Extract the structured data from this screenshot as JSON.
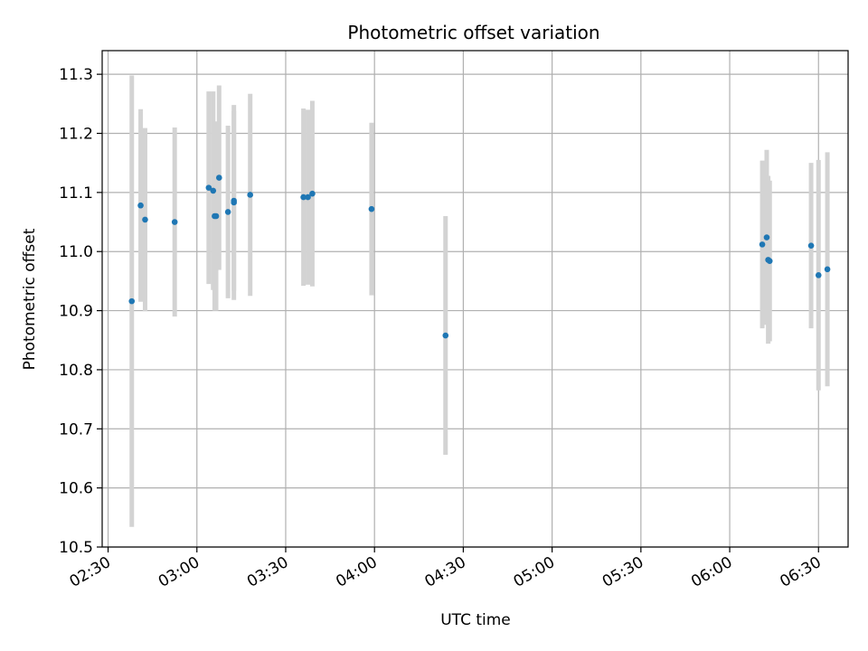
{
  "chart_data": {
    "type": "scatter",
    "title": "Photometric offset variation",
    "xlabel": "UTC time",
    "ylabel": "Photometric offset",
    "grid": true,
    "xlim": [
      "02:28",
      "06:40"
    ],
    "ylim": [
      10.5,
      11.34
    ],
    "x_ticks": [
      "02:30",
      "03:00",
      "03:30",
      "04:00",
      "04:30",
      "05:00",
      "05:30",
      "06:00",
      "06:30"
    ],
    "y_ticks": [
      10.5,
      10.6,
      10.7,
      10.8,
      10.9,
      11.0,
      11.1,
      11.2,
      11.3
    ],
    "colors": {
      "point": "#1f77b4",
      "errorbar": "#d3d3d3",
      "grid": "#b0b0b0"
    },
    "points": [
      {
        "x": "02:38:00",
        "y": 10.916,
        "err": 0.382
      },
      {
        "x": "02:41:00",
        "y": 11.078,
        "err": 0.163
      },
      {
        "x": "02:42:30",
        "y": 11.054,
        "err": 0.155
      },
      {
        "x": "02:52:30",
        "y": 11.05,
        "err": 0.16
      },
      {
        "x": "03:04:00",
        "y": 11.108,
        "err": 0.163
      },
      {
        "x": "03:05:30",
        "y": 11.103,
        "err": 0.168
      },
      {
        "x": "03:06:00",
        "y": 11.06,
        "err": 0.16
      },
      {
        "x": "03:06:30",
        "y": 11.06,
        "err": 0.16
      },
      {
        "x": "03:07:30",
        "y": 11.125,
        "err": 0.156
      },
      {
        "x": "03:10:30",
        "y": 11.067,
        "err": 0.146
      },
      {
        "x": "03:12:30",
        "y": 11.083,
        "err": 0.165
      },
      {
        "x": "03:12:30",
        "y": 11.086,
        "err": 0.152
      },
      {
        "x": "03:18:00",
        "y": 11.096,
        "err": 0.171
      },
      {
        "x": "03:36:00",
        "y": 11.092,
        "err": 0.15
      },
      {
        "x": "03:37:30",
        "y": 11.092,
        "err": 0.148
      },
      {
        "x": "03:39:00",
        "y": 11.098,
        "err": 0.157
      },
      {
        "x": "03:59:00",
        "y": 11.072,
        "err": 0.146
      },
      {
        "x": "04:24:00",
        "y": 10.858,
        "err": 0.202
      },
      {
        "x": "06:11:00",
        "y": 11.012,
        "err": 0.142
      },
      {
        "x": "06:12:30",
        "y": 11.024,
        "err": 0.148
      },
      {
        "x": "06:13:00",
        "y": 10.986,
        "err": 0.142
      },
      {
        "x": "06:13:30",
        "y": 10.984,
        "err": 0.136
      },
      {
        "x": "06:27:30",
        "y": 11.01,
        "err": 0.14
      },
      {
        "x": "06:30:00",
        "y": 10.96,
        "err": 0.195
      },
      {
        "x": "06:33:00",
        "y": 10.97,
        "err": 0.198
      }
    ]
  }
}
